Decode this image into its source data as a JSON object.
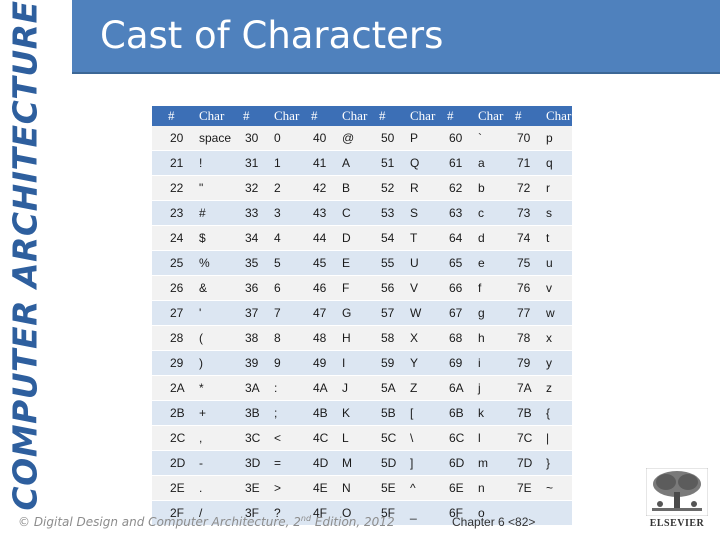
{
  "side_banner": "COMPUTER ARCHITECTURE",
  "title": "Cast of Characters",
  "table": {
    "headers": [
      "#",
      "Char",
      "#",
      "Char",
      "#",
      "Char",
      "#",
      "Char",
      "#",
      "Char",
      "#",
      "Char"
    ],
    "rows": [
      [
        "20",
        "space",
        "30",
        "0",
        "40",
        "@",
        "50",
        "P",
        "60",
        "`",
        "70",
        "p"
      ],
      [
        "21",
        "!",
        "31",
        "1",
        "41",
        "A",
        "51",
        "Q",
        "61",
        "a",
        "71",
        "q"
      ],
      [
        "22",
        "\"",
        "32",
        "2",
        "42",
        "B",
        "52",
        "R",
        "62",
        "b",
        "72",
        "r"
      ],
      [
        "23",
        "#",
        "33",
        "3",
        "43",
        "C",
        "53",
        "S",
        "63",
        "c",
        "73",
        "s"
      ],
      [
        "24",
        "$",
        "34",
        "4",
        "44",
        "D",
        "54",
        "T",
        "64",
        "d",
        "74",
        "t"
      ],
      [
        "25",
        "%",
        "35",
        "5",
        "45",
        "E",
        "55",
        "U",
        "65",
        "e",
        "75",
        "u"
      ],
      [
        "26",
        "&",
        "36",
        "6",
        "46",
        "F",
        "56",
        "V",
        "66",
        "f",
        "76",
        "v"
      ],
      [
        "27",
        "'",
        "37",
        "7",
        "47",
        "G",
        "57",
        "W",
        "67",
        "g",
        "77",
        "w"
      ],
      [
        "28",
        "(",
        "38",
        "8",
        "48",
        "H",
        "58",
        "X",
        "68",
        "h",
        "78",
        "x"
      ],
      [
        "29",
        ")",
        "39",
        "9",
        "49",
        "I",
        "59",
        "Y",
        "69",
        "i",
        "79",
        "y"
      ],
      [
        "2A",
        "*",
        "3A",
        ":",
        "4A",
        "J",
        "5A",
        "Z",
        "6A",
        "j",
        "7A",
        "z"
      ],
      [
        "2B",
        "+",
        "3B",
        ";",
        "4B",
        "K",
        "5B",
        "[",
        "6B",
        "k",
        "7B",
        "{"
      ],
      [
        "2C",
        ",",
        "3C",
        "<",
        "4C",
        "L",
        "5C",
        "\\",
        "6C",
        "l",
        "7C",
        "|"
      ],
      [
        "2D",
        "-",
        "3D",
        "=",
        "4D",
        "M",
        "5D",
        "]",
        "6D",
        "m",
        "7D",
        "}"
      ],
      [
        "2E",
        ".",
        "3E",
        ">",
        "4E",
        "N",
        "5E",
        "^",
        "6E",
        "n",
        "7E",
        "~"
      ],
      [
        "2F",
        "/",
        "3F",
        "?",
        "4F",
        "O",
        "5F",
        "_",
        "6F",
        "o",
        "",
        ""
      ]
    ]
  },
  "footer": {
    "copyright": "© Digital Design and Computer Architecture, 2",
    "copyright_sup": "nd",
    "copyright_end": " Edition, 2012",
    "chapter": "Chapter 6 <82>"
  },
  "logo": {
    "text": "ELSEVIER",
    "icon": "elsevier-tree-logo"
  },
  "colors": {
    "accent": "#4f81bd",
    "header": "#3c6fb6",
    "row_alt": "#dce6f2",
    "row": "#f2f2f2"
  }
}
